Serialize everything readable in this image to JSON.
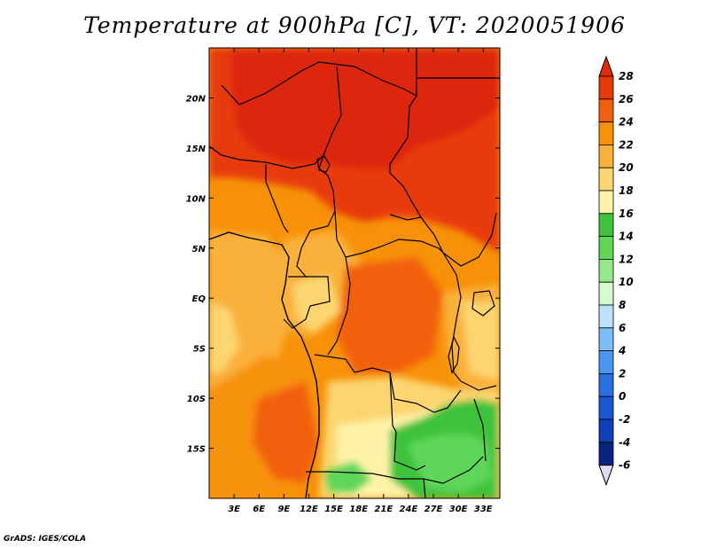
{
  "title": "Temperature at 900hPa [C], VT: 2020051906",
  "footer": "GrADS: IGES/COLA",
  "map": {
    "region": "Central Africa",
    "lon_range": [
      0,
      35
    ],
    "lat_range": [
      -20,
      25
    ],
    "lon_ticks": [
      {
        "value": 3,
        "label": "3E"
      },
      {
        "value": 6,
        "label": "6E"
      },
      {
        "value": 9,
        "label": "9E"
      },
      {
        "value": 12,
        "label": "12E"
      },
      {
        "value": 15,
        "label": "15E"
      },
      {
        "value": 18,
        "label": "18E"
      },
      {
        "value": 21,
        "label": "21E"
      },
      {
        "value": 24,
        "label": "24E"
      },
      {
        "value": 27,
        "label": "27E"
      },
      {
        "value": 30,
        "label": "30E"
      },
      {
        "value": 33,
        "label": "33E"
      }
    ],
    "lat_ticks": [
      {
        "value": 20,
        "label": "20N"
      },
      {
        "value": 15,
        "label": "15N"
      },
      {
        "value": 10,
        "label": "10N"
      },
      {
        "value": 5,
        "label": "5N"
      },
      {
        "value": 0,
        "label": "EQ"
      },
      {
        "value": -5,
        "label": "5S"
      },
      {
        "value": -10,
        "label": "10S"
      },
      {
        "value": -15,
        "label": "15S"
      }
    ]
  },
  "colorbar": {
    "levels": [
      {
        "label": "28",
        "color": "#dc2710"
      },
      {
        "label": "26",
        "color": "#e83a08"
      },
      {
        "label": "24",
        "color": "#f3600b"
      },
      {
        "label": "22",
        "color": "#f79208"
      },
      {
        "label": "20",
        "color": "#fab13b"
      },
      {
        "label": "18",
        "color": "#fcd570"
      },
      {
        "label": "16",
        "color": "#fef3a8"
      },
      {
        "label": "14",
        "color": "#3ec33a"
      },
      {
        "label": "12",
        "color": "#5fd658"
      },
      {
        "label": "10",
        "color": "#96e88c"
      },
      {
        "label": "8",
        "color": "#d8f8d2"
      },
      {
        "label": "6",
        "color": "#bee2fe"
      },
      {
        "label": "4",
        "color": "#7cbdf8"
      },
      {
        "label": "2",
        "color": "#4a97f0"
      },
      {
        "label": "0",
        "color": "#2a6fe4"
      },
      {
        "label": "-2",
        "color": "#1a56d2"
      },
      {
        "label": "-4",
        "color": "#0e40b7"
      },
      {
        "label": "-6",
        "color": "#08247e"
      }
    ],
    "top_arrow_color": "#e32c0c",
    "bottom_arrow_color": "#dcdcf5"
  }
}
